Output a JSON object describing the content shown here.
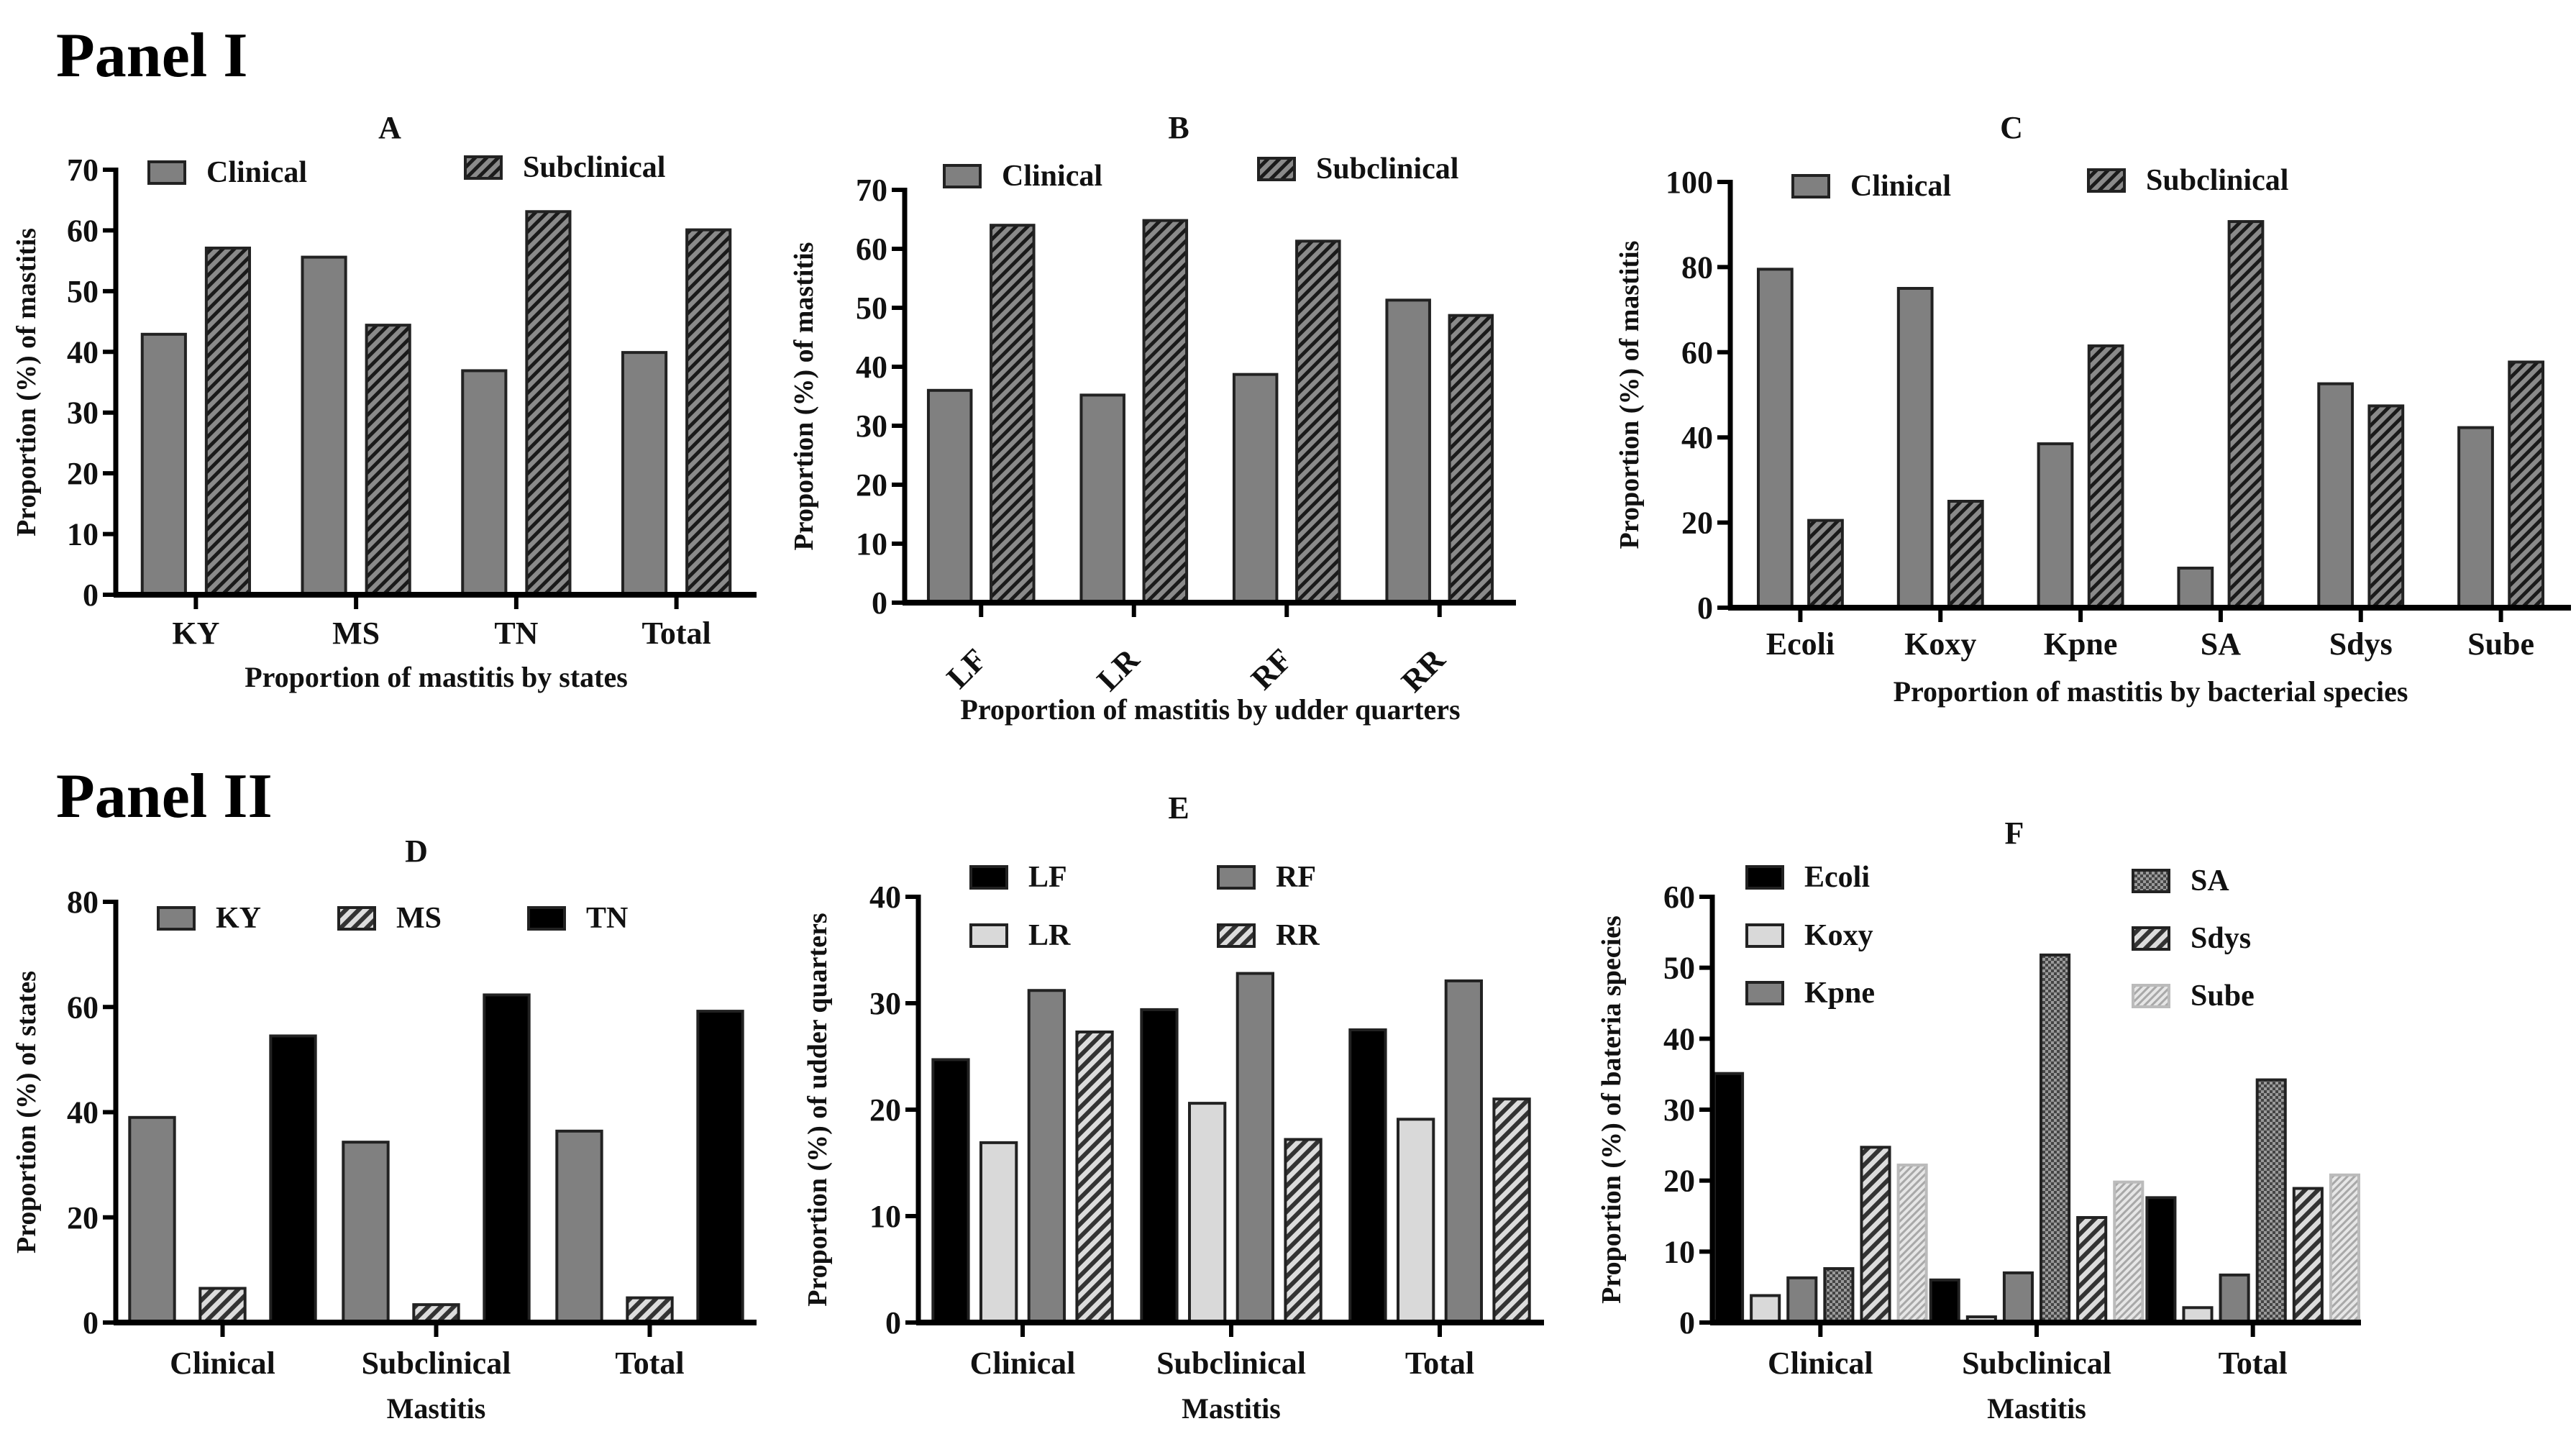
{
  "panels": {
    "panel1": "Panel I",
    "panel2": "Panel II"
  },
  "colors": {
    "gray": "#808080",
    "black": "#000000",
    "light": "#d9d9d9",
    "axis": "#000000"
  },
  "chart_data": [
    {
      "id": "A",
      "type": "bar",
      "title": "A",
      "xlabel": "Proportion of mastitis by states",
      "ylabel": "Proportion (%) of mastitis",
      "ylim": [
        0,
        70
      ],
      "ytick_step": 10,
      "categories": [
        "KY",
        "MS",
        "TN",
        "Total"
      ],
      "legend": "top",
      "series": [
        {
          "name": "Clinical",
          "style": "gray",
          "values": [
            42.9,
            55.6,
            36.9,
            39.9
          ]
        },
        {
          "name": "Subclinical",
          "style": "hatch",
          "values": [
            57.1,
            44.4,
            63.1,
            60.1
          ]
        }
      ]
    },
    {
      "id": "B",
      "type": "bar",
      "title": "B",
      "xlabel": "Proportion of mastitis by udder quarters",
      "ylabel": "Proportion (%) of mastitis",
      "ylim": [
        0,
        70
      ],
      "ytick_step": 10,
      "categories": [
        "LF",
        "LR",
        "RF",
        "RR"
      ],
      "legend": "top",
      "series": [
        {
          "name": "Clinical",
          "style": "gray",
          "values": [
            36.0,
            35.2,
            38.7,
            51.3
          ]
        },
        {
          "name": "Subclinical",
          "style": "hatch",
          "values": [
            64.0,
            64.8,
            61.3,
            48.7
          ]
        }
      ]
    },
    {
      "id": "C",
      "type": "bar",
      "title": "C",
      "xlabel": "Proportion of mastitis by bacterial species",
      "ylabel": "Proportion (%) of mastitis",
      "ylim": [
        0,
        100
      ],
      "ytick_step": 20,
      "categories": [
        "Ecoli",
        "Koxy",
        "Kpne",
        "SA",
        "Sdys",
        "Sube"
      ],
      "legend": "top",
      "series": [
        {
          "name": "Clinical",
          "style": "gray",
          "values": [
            79.5,
            75.0,
            38.5,
            9.3,
            52.6,
            42.3
          ]
        },
        {
          "name": "Subclinical",
          "style": "hatch",
          "values": [
            20.5,
            25.0,
            61.5,
            90.7,
            47.4,
            57.7
          ]
        }
      ]
    },
    {
      "id": "D",
      "type": "bar",
      "title": "D",
      "xlabel": "Mastitis",
      "ylabel": "Proportion (%) of states",
      "ylim": [
        0,
        80
      ],
      "ytick_step": 20,
      "categories": [
        "Clinical",
        "Subclinical",
        "Total"
      ],
      "legend": "top",
      "series": [
        {
          "name": "KY",
          "style": "gray",
          "values": [
            39.0,
            34.3,
            36.4
          ]
        },
        {
          "name": "MS",
          "style": "lighthatch",
          "values": [
            6.5,
            3.4,
            4.7
          ]
        },
        {
          "name": "TN",
          "style": "black",
          "values": [
            54.5,
            62.3,
            59.2
          ]
        }
      ]
    },
    {
      "id": "E",
      "type": "bar",
      "title": "E",
      "xlabel": "Mastitis",
      "ylabel": "Proportion (%) of udder quarters",
      "ylim": [
        0,
        40
      ],
      "ytick_step": 10,
      "categories": [
        "Clinical",
        "Subclinical",
        "Total"
      ],
      "legend": "top",
      "series": [
        {
          "name": "LF",
          "style": "black",
          "values": [
            24.7,
            29.4,
            27.5
          ]
        },
        {
          "name": "LR",
          "style": "light",
          "values": [
            16.9,
            20.6,
            19.1
          ]
        },
        {
          "name": "RF",
          "style": "gray",
          "values": [
            31.2,
            32.8,
            32.1
          ]
        },
        {
          "name": "RR",
          "style": "lighthatch",
          "values": [
            27.3,
            17.2,
            21.0
          ]
        }
      ]
    },
    {
      "id": "F",
      "type": "bar",
      "title": "F",
      "xlabel": "Mastitis",
      "ylabel": "Proportion (%) of bateria species",
      "ylim": [
        0,
        60
      ],
      "ytick_step": 10,
      "categories": [
        "Clinical",
        "Subclinical",
        "Total"
      ],
      "legend": "top",
      "series": [
        {
          "name": "Ecoli",
          "style": "black",
          "values": [
            35.1,
            6.0,
            17.6
          ]
        },
        {
          "name": "Koxy",
          "style": "light",
          "values": [
            3.8,
            0.8,
            2.1
          ]
        },
        {
          "name": "Kpne",
          "style": "gray",
          "values": [
            6.3,
            7.0,
            6.7
          ]
        },
        {
          "name": "SA",
          "style": "dots",
          "values": [
            7.6,
            51.8,
            34.2
          ]
        },
        {
          "name": "Sdys",
          "style": "lighthatch",
          "values": [
            24.7,
            14.8,
            18.9
          ]
        },
        {
          "name": "Sube",
          "style": "softhatch",
          "values": [
            22.2,
            19.8,
            20.8
          ]
        }
      ]
    }
  ]
}
